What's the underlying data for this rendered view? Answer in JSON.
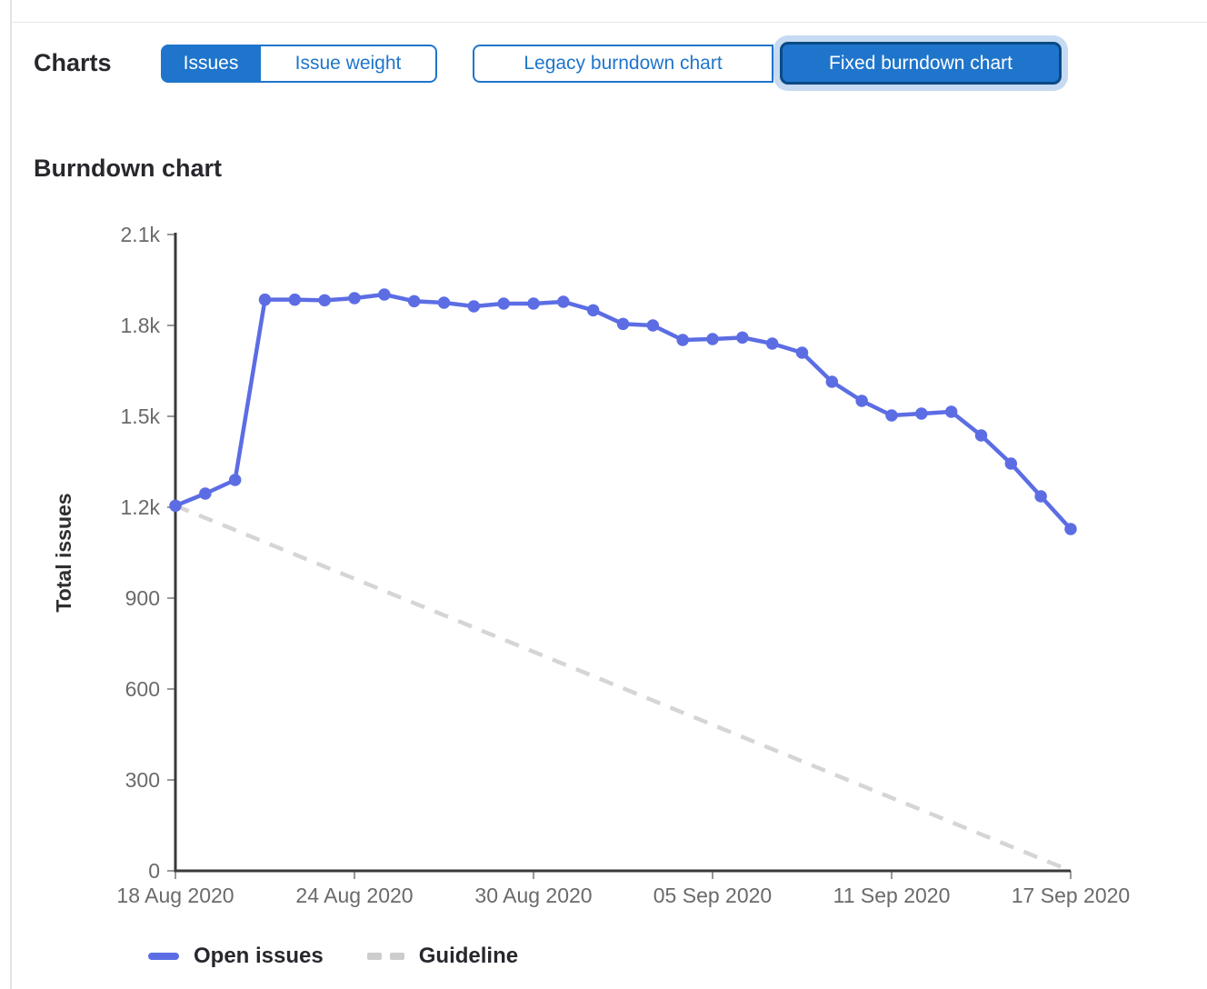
{
  "header": {
    "charts_label": "Charts"
  },
  "toolbar": {
    "issues_label": "Issues",
    "issue_weight_label": "Issue weight",
    "legacy_label": "Legacy burndown chart",
    "fixed_label": "Fixed burndown chart",
    "selected_scope": "Issues",
    "selected_chart": "Fixed burndown chart"
  },
  "section": {
    "title": "Burndown chart"
  },
  "colors": {
    "accent_blue": "#1f75cb",
    "accent_blue_dark_border": "#0b4a85",
    "focus_ring": "#c6daf2",
    "open_issues_line": "#5c6de4",
    "guideline": "#d5d5d5",
    "axis_line": "#3a3a3a",
    "tick_mark": "#999999",
    "tick_label": "#6a6a6a",
    "heading_text": "#28272d"
  },
  "legend": {
    "position": "bottom-left",
    "open_issues_label": "Open issues",
    "guideline_label": "Guideline"
  },
  "chart_data": {
    "type": "line",
    "title": "Burndown chart",
    "xlabel": "",
    "ylabel": "Total issues",
    "ylim": [
      0,
      2100
    ],
    "grid": false,
    "x_range": {
      "start": "18 Aug 2020",
      "end": "17 Sep 2020",
      "days": 31
    },
    "y_ticks": [
      {
        "v": 2100,
        "label": "2.1k"
      },
      {
        "v": 1800,
        "label": "1.8k"
      },
      {
        "v": 1500,
        "label": "1.5k"
      },
      {
        "v": 1200,
        "label": "1.2k"
      },
      {
        "v": 900,
        "label": "900"
      },
      {
        "v": 600,
        "label": "600"
      },
      {
        "v": 300,
        "label": "300"
      },
      {
        "v": 0,
        "label": "0"
      }
    ],
    "x_ticks": [
      {
        "i": 0,
        "label": "18 Aug 2020"
      },
      {
        "i": 6,
        "label": "24 Aug 2020"
      },
      {
        "i": 12,
        "label": "30 Aug 2020"
      },
      {
        "i": 18,
        "label": "05 Sep 2020"
      },
      {
        "i": 24,
        "label": "11 Sep 2020"
      },
      {
        "i": 30,
        "label": "17 Sep 2020"
      }
    ],
    "series": [
      {
        "name": "Open issues",
        "style": "solid",
        "color": "#5c6de4",
        "values": [
          1205,
          1245,
          1290,
          1885,
          1885,
          1883,
          1890,
          1902,
          1880,
          1875,
          1863,
          1872,
          1872,
          1878,
          1850,
          1805,
          1800,
          1752,
          1755,
          1760,
          1740,
          1710,
          1614,
          1551,
          1503,
          1509,
          1515,
          1437,
          1344,
          1236,
          1128
        ]
      },
      {
        "name": "Guideline",
        "style": "dashed",
        "color": "#d5d5d5",
        "endpoints": [
          [
            0,
            1205
          ],
          [
            30,
            0
          ]
        ]
      }
    ]
  }
}
